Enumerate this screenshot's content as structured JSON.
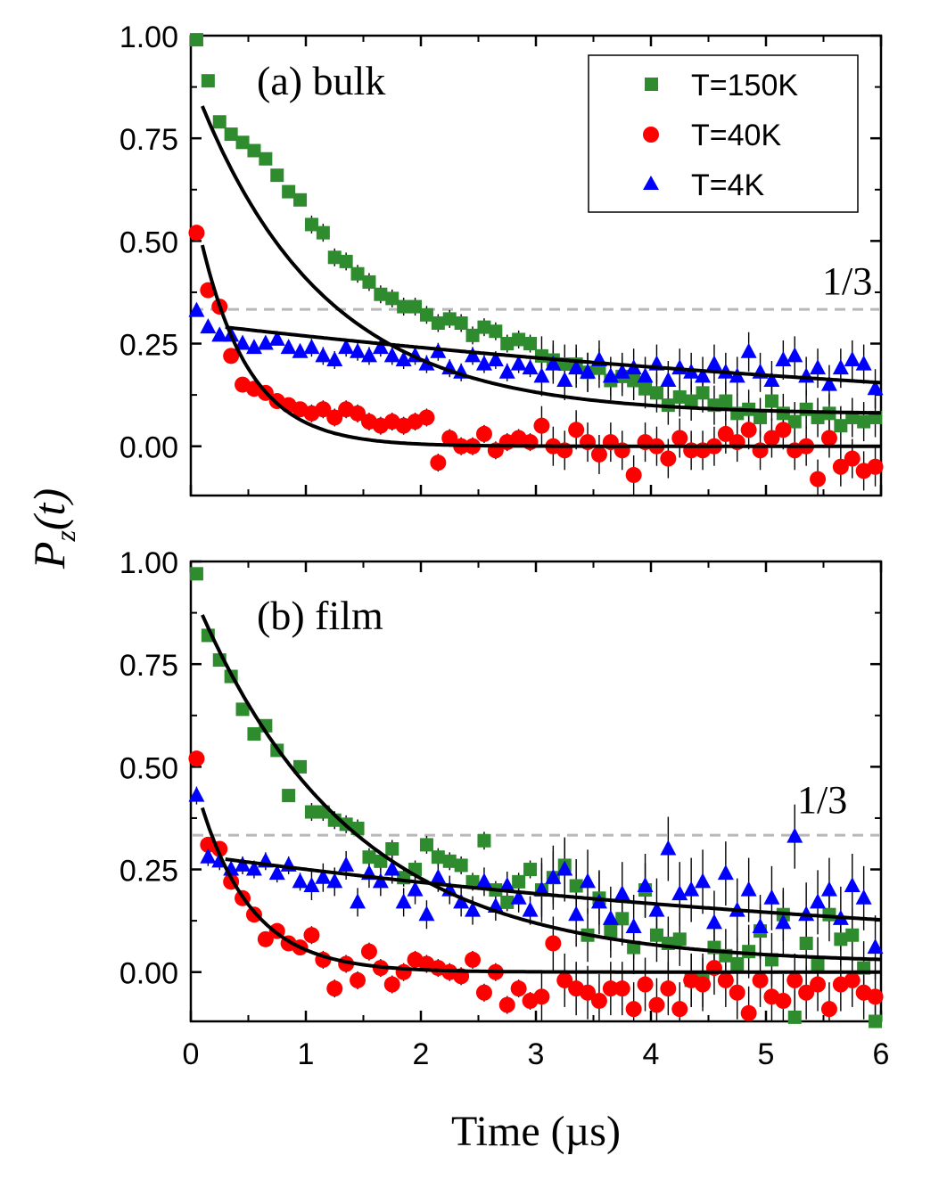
{
  "chart_data": [
    {
      "type": "scatter",
      "panel_label": "(a) bulk",
      "xlim": [
        0,
        6
      ],
      "ylim": [
        -0.12,
        1.0
      ],
      "y_ticks": [
        "1.00",
        "0.75",
        "0.50",
        "0.25",
        "0.00"
      ],
      "y_tick_values": [
        1.0,
        0.75,
        0.5,
        0.25,
        0.0
      ],
      "x_ticks": [
        0,
        1,
        2,
        3,
        4,
        5,
        6
      ],
      "reference_line": {
        "y": 0.3333,
        "label": "1/3",
        "style": "dashed",
        "color": "#b8b8b8"
      },
      "legend": {
        "placement": "top-right",
        "entries": [
          "T=150K",
          "T=40K",
          "T=4K"
        ]
      },
      "series": [
        {
          "name": "T=150K",
          "marker": "square",
          "color": "#2e8b2e",
          "x": [
            0.05,
            0.15,
            0.25,
            0.35,
            0.45,
            0.55,
            0.65,
            0.75,
            0.85,
            0.95,
            1.05,
            1.15,
            1.25,
            1.35,
            1.45,
            1.55,
            1.65,
            1.75,
            1.85,
            1.95,
            2.05,
            2.15,
            2.25,
            2.35,
            2.45,
            2.55,
            2.65,
            2.75,
            2.85,
            2.95,
            3.05,
            3.15,
            3.25,
            3.35,
            3.45,
            3.55,
            3.65,
            3.75,
            3.85,
            3.95,
            4.05,
            4.15,
            4.25,
            4.35,
            4.45,
            4.55,
            4.65,
            4.75,
            4.85,
            4.95,
            5.05,
            5.15,
            5.25,
            5.35,
            5.45,
            5.55,
            5.65,
            5.75,
            5.85,
            5.95
          ],
          "y": [
            0.99,
            0.89,
            0.79,
            0.76,
            0.74,
            0.72,
            0.7,
            0.66,
            0.62,
            0.6,
            0.54,
            0.52,
            0.46,
            0.45,
            0.42,
            0.4,
            0.37,
            0.36,
            0.34,
            0.34,
            0.32,
            0.3,
            0.31,
            0.3,
            0.27,
            0.29,
            0.28,
            0.25,
            0.26,
            0.25,
            0.22,
            0.21,
            0.2,
            0.2,
            0.18,
            0.19,
            0.16,
            0.17,
            0.16,
            0.14,
            0.13,
            0.1,
            0.12,
            0.11,
            0.13,
            0.1,
            0.11,
            0.08,
            0.09,
            0.07,
            0.11,
            0.08,
            0.06,
            0.09,
            0.07,
            0.08,
            0.05,
            0.07,
            0.06,
            0.07
          ]
        },
        {
          "name": "T=40K",
          "marker": "circle",
          "color": "#ff0000",
          "x": [
            0.05,
            0.15,
            0.25,
            0.35,
            0.45,
            0.55,
            0.65,
            0.75,
            0.85,
            0.95,
            1.05,
            1.15,
            1.25,
            1.35,
            1.45,
            1.55,
            1.65,
            1.75,
            1.85,
            1.95,
            2.05,
            2.15,
            2.25,
            2.35,
            2.45,
            2.55,
            2.65,
            2.75,
            2.85,
            2.95,
            3.05,
            3.15,
            3.25,
            3.35,
            3.45,
            3.55,
            3.65,
            3.75,
            3.85,
            3.95,
            4.05,
            4.15,
            4.25,
            4.35,
            4.45,
            4.55,
            4.65,
            4.75,
            4.85,
            4.95,
            5.05,
            5.15,
            5.25,
            5.35,
            5.45,
            5.55,
            5.65,
            5.75,
            5.85,
            5.95
          ],
          "y": [
            0.52,
            0.38,
            0.34,
            0.22,
            0.15,
            0.14,
            0.13,
            0.11,
            0.1,
            0.09,
            0.08,
            0.09,
            0.07,
            0.09,
            0.08,
            0.06,
            0.05,
            0.06,
            0.05,
            0.06,
            0.07,
            -0.04,
            0.02,
            0.0,
            0.0,
            0.03,
            -0.01,
            0.01,
            0.02,
            0.01,
            0.05,
            0.0,
            -0.01,
            0.04,
            0.01,
            -0.02,
            0.01,
            -0.01,
            -0.07,
            0.01,
            0.0,
            -0.03,
            0.02,
            -0.01,
            -0.01,
            0.0,
            0.03,
            0.01,
            0.04,
            -0.01,
            0.02,
            0.04,
            -0.01,
            0.0,
            -0.08,
            0.02,
            -0.05,
            -0.03,
            -0.06,
            -0.05
          ]
        },
        {
          "name": "T=4K",
          "marker": "triangle",
          "color": "#0000ff",
          "x": [
            0.05,
            0.15,
            0.25,
            0.35,
            0.45,
            0.55,
            0.65,
            0.75,
            0.85,
            0.95,
            1.05,
            1.15,
            1.25,
            1.35,
            1.45,
            1.55,
            1.65,
            1.75,
            1.85,
            1.95,
            2.05,
            2.15,
            2.25,
            2.35,
            2.45,
            2.55,
            2.65,
            2.75,
            2.85,
            2.95,
            3.05,
            3.15,
            3.25,
            3.35,
            3.45,
            3.55,
            3.65,
            3.75,
            3.85,
            3.95,
            4.05,
            4.15,
            4.25,
            4.35,
            4.45,
            4.55,
            4.65,
            4.75,
            4.85,
            4.95,
            5.05,
            5.15,
            5.25,
            5.35,
            5.45,
            5.55,
            5.65,
            5.75,
            5.85,
            5.95
          ],
          "y": [
            0.33,
            0.29,
            0.27,
            0.27,
            0.25,
            0.24,
            0.25,
            0.26,
            0.24,
            0.23,
            0.24,
            0.22,
            0.21,
            0.24,
            0.23,
            0.22,
            0.24,
            0.22,
            0.21,
            0.22,
            0.2,
            0.23,
            0.19,
            0.18,
            0.22,
            0.2,
            0.21,
            0.18,
            0.2,
            0.19,
            0.17,
            0.2,
            0.16,
            0.19,
            0.18,
            0.21,
            0.17,
            0.18,
            0.19,
            0.17,
            0.2,
            0.16,
            0.19,
            0.18,
            0.17,
            0.2,
            0.18,
            0.17,
            0.23,
            0.18,
            0.16,
            0.21,
            0.22,
            0.17,
            0.19,
            0.15,
            0.19,
            0.21,
            0.2,
            0.14
          ]
        }
      ],
      "fit_curves": [
        {
          "for": "T=150K",
          "x0": 0.1,
          "y": "0.0778 + 0.8222*exp(-x/1.1)"
        },
        {
          "for": "T=40K",
          "x0": 0.1,
          "y": "0.0 + 0.49*exp(-(x-0.1)/0.42)"
        },
        {
          "for": "T=4K",
          "x0": 0.3,
          "y": "0.29*exp(-0.11*(x-0.3)) - 0.0"
        }
      ]
    },
    {
      "type": "scatter",
      "panel_label": "(b) film",
      "xlim": [
        0,
        6
      ],
      "ylim": [
        -0.12,
        1.0
      ],
      "y_ticks": [
        "1.00",
        "0.75",
        "0.50",
        "0.25",
        "0.00"
      ],
      "y_tick_values": [
        1.0,
        0.75,
        0.5,
        0.25,
        0.0
      ],
      "x_ticks": [
        0,
        1,
        2,
        3,
        4,
        5,
        6
      ],
      "xlabel": "Time (µs)",
      "reference_line": {
        "y": 0.3333,
        "label": "1/3",
        "style": "dashed",
        "color": "#b8b8b8"
      },
      "series": [
        {
          "name": "T=150K",
          "marker": "square",
          "color": "#2e8b2e",
          "x": [
            0.05,
            0.15,
            0.25,
            0.35,
            0.45,
            0.55,
            0.65,
            0.75,
            0.85,
            0.95,
            1.05,
            1.15,
            1.25,
            1.35,
            1.45,
            1.55,
            1.65,
            1.75,
            1.85,
            1.95,
            2.05,
            2.15,
            2.25,
            2.35,
            2.45,
            2.55,
            2.65,
            2.75,
            2.85,
            2.95,
            3.05,
            3.15,
            3.25,
            3.35,
            3.45,
            3.55,
            3.65,
            3.75,
            3.85,
            3.95,
            4.05,
            4.15,
            4.25,
            4.35,
            4.45,
            4.55,
            4.65,
            4.75,
            4.85,
            4.95,
            5.05,
            5.15,
            5.25,
            5.35,
            5.45,
            5.55,
            5.65,
            5.75,
            5.85,
            5.95
          ],
          "y": [
            0.97,
            0.82,
            0.76,
            0.72,
            0.64,
            0.58,
            0.6,
            0.54,
            0.43,
            0.5,
            0.39,
            0.39,
            0.37,
            0.36,
            0.35,
            0.28,
            0.27,
            0.3,
            0.23,
            0.25,
            0.31,
            0.28,
            0.27,
            0.26,
            0.22,
            0.32,
            0.2,
            0.17,
            0.22,
            0.25,
            0.2,
            0.23,
            0.26,
            0.21,
            0.09,
            0.18,
            0.1,
            0.13,
            0.06,
            0.2,
            0.09,
            0.07,
            0.08,
            -0.02,
            -0.02,
            0.06,
            0.04,
            0.02,
            0.05,
            0.1,
            0.03,
            0.14,
            -0.11,
            0.07,
            0.02,
            0.14,
            0.08,
            0.09,
            0.01,
            -0.12
          ]
        },
        {
          "name": "T=40K",
          "marker": "circle",
          "color": "#ff0000",
          "x": [
            0.05,
            0.15,
            0.25,
            0.35,
            0.45,
            0.55,
            0.65,
            0.75,
            0.85,
            0.95,
            1.05,
            1.15,
            1.25,
            1.35,
            1.45,
            1.55,
            1.65,
            1.75,
            1.85,
            1.95,
            2.05,
            2.15,
            2.25,
            2.35,
            2.45,
            2.55,
            2.65,
            2.75,
            2.85,
            2.95,
            3.05,
            3.15,
            3.25,
            3.35,
            3.45,
            3.55,
            3.65,
            3.75,
            3.85,
            3.95,
            4.05,
            4.15,
            4.25,
            4.35,
            4.45,
            4.55,
            4.65,
            4.75,
            4.85,
            4.95,
            5.05,
            5.15,
            5.25,
            5.35,
            5.45,
            5.55,
            5.65,
            5.75,
            5.85,
            5.95
          ],
          "y": [
            0.52,
            0.31,
            0.3,
            0.22,
            0.18,
            0.14,
            0.08,
            0.1,
            0.07,
            0.06,
            0.09,
            0.03,
            -0.04,
            0.02,
            -0.02,
            0.05,
            0.01,
            -0.03,
            0.0,
            0.03,
            0.02,
            0.01,
            0.0,
            -0.01,
            0.03,
            -0.05,
            0.0,
            -0.08,
            -0.04,
            -0.07,
            -0.06,
            0.07,
            -0.02,
            -0.04,
            -0.05,
            -0.07,
            -0.04,
            -0.04,
            -0.09,
            -0.03,
            -0.08,
            -0.04,
            -0.09,
            -0.02,
            -0.03,
            0.01,
            -0.02,
            -0.05,
            -0.1,
            -0.02,
            -0.06,
            -0.07,
            -0.02,
            -0.05,
            -0.03,
            -0.09,
            -0.03,
            -0.02,
            -0.05,
            -0.06
          ]
        },
        {
          "name": "T=4K",
          "marker": "triangle",
          "color": "#0000ff",
          "x": [
            0.05,
            0.15,
            0.25,
            0.35,
            0.45,
            0.55,
            0.65,
            0.75,
            0.85,
            0.95,
            1.05,
            1.15,
            1.25,
            1.35,
            1.45,
            1.55,
            1.65,
            1.75,
            1.85,
            1.95,
            2.05,
            2.15,
            2.25,
            2.35,
            2.45,
            2.55,
            2.65,
            2.75,
            2.85,
            2.95,
            3.05,
            3.15,
            3.25,
            3.35,
            3.45,
            3.55,
            3.65,
            3.75,
            3.85,
            3.95,
            4.05,
            4.15,
            4.25,
            4.35,
            4.45,
            4.55,
            4.65,
            4.75,
            4.85,
            4.95,
            5.05,
            5.15,
            5.25,
            5.35,
            5.45,
            5.55,
            5.65,
            5.75,
            5.85,
            5.95
          ],
          "y": [
            0.43,
            0.28,
            0.27,
            0.25,
            0.26,
            0.25,
            0.27,
            0.24,
            0.26,
            0.22,
            0.21,
            0.23,
            0.22,
            0.26,
            0.17,
            0.24,
            0.22,
            0.25,
            0.17,
            0.2,
            0.14,
            0.23,
            0.2,
            0.17,
            0.15,
            0.22,
            0.16,
            0.21,
            0.18,
            0.15,
            0.2,
            0.23,
            0.25,
            0.14,
            0.22,
            0.17,
            0.13,
            0.19,
            0.11,
            0.21,
            0.15,
            0.3,
            0.19,
            0.2,
            0.22,
            0.12,
            0.24,
            0.15,
            0.2,
            0.11,
            0.18,
            0.12,
            0.33,
            0.14,
            0.17,
            0.2,
            0.13,
            0.21,
            0.18,
            0.06
          ]
        }
      ],
      "fit_curves": [
        {
          "for": "T=150K",
          "x0": 0.1,
          "y": "0.02 + 0.85*exp(-(x-0.1)/1.35)"
        },
        {
          "for": "T=40K",
          "x0": 0.1,
          "y": "0.0 + 0.4*exp(-(x-0.1)/0.45)"
        },
        {
          "for": "T=4K",
          "x0": 0.3,
          "y": "0.275*exp(-0.135*(x-0.3))"
        }
      ]
    }
  ],
  "shared": {
    "ylabel_main": "P",
    "ylabel_sub": "z",
    "ylabel_arg": "(t)"
  }
}
